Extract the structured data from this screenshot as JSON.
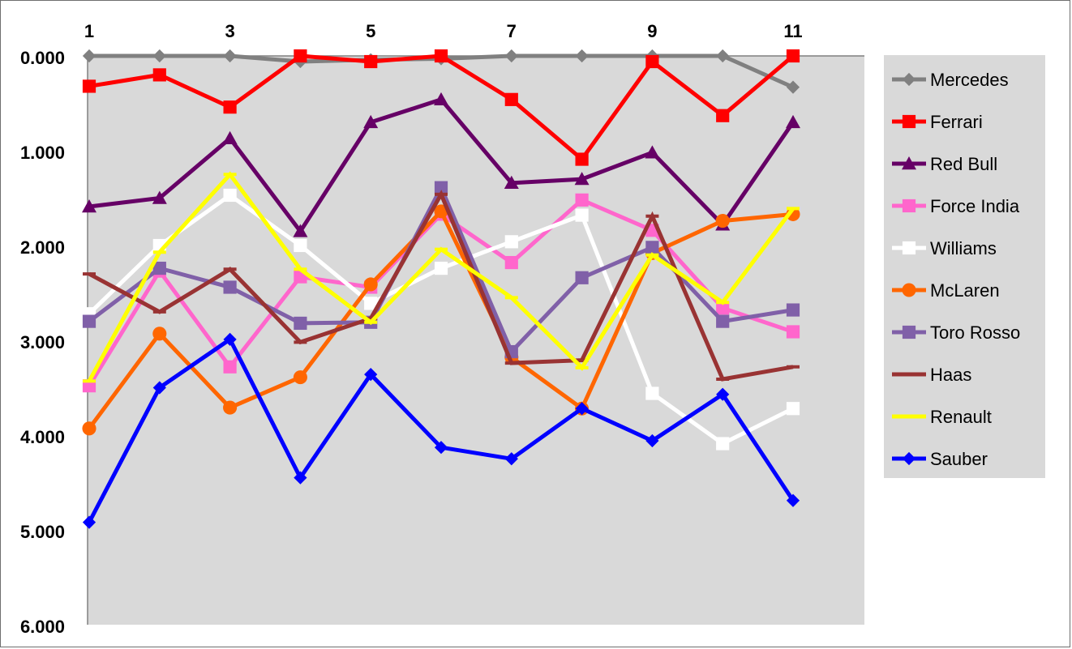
{
  "chart_data": {
    "type": "line",
    "title": "",
    "xlabel": "",
    "ylabel": "",
    "x": [
      1,
      2,
      3,
      4,
      5,
      6,
      7,
      8,
      9,
      10,
      11
    ],
    "x_tick_labels": [
      "1",
      "3",
      "5",
      "7",
      "9",
      "11"
    ],
    "y_tick_labels": [
      "0.000",
      "1.000",
      "2.000",
      "3.000",
      "4.000",
      "5.000",
      "6.000"
    ],
    "ylim": [
      0,
      6
    ],
    "y_inverted": true,
    "x_axis_position": "top",
    "plot_background": "#d9d9d9",
    "grid": false,
    "legend_position": "right",
    "series": [
      {
        "name": "Mercedes",
        "color": "#808080",
        "marker": "diamond",
        "values": [
          0.0,
          0.0,
          0.0,
          0.06,
          0.04,
          0.03,
          0.0,
          0.0,
          0.0,
          0.0,
          0.33
        ]
      },
      {
        "name": "Ferrari",
        "color": "#ff0000",
        "marker": "square",
        "values": [
          0.32,
          0.2,
          0.54,
          0.0,
          0.06,
          0.0,
          0.46,
          1.09,
          0.06,
          0.63,
          0.0
        ]
      },
      {
        "name": "Red Bull",
        "color": "#660066",
        "marker": "triangle",
        "values": [
          1.59,
          1.5,
          0.87,
          1.85,
          0.7,
          0.46,
          1.34,
          1.3,
          1.02,
          1.78,
          0.7
        ]
      },
      {
        "name": "Force India",
        "color": "#ff66cc",
        "marker": "square",
        "values": [
          3.48,
          2.27,
          3.28,
          2.33,
          2.44,
          1.67,
          2.18,
          1.52,
          1.84,
          2.66,
          2.91
        ]
      },
      {
        "name": "Williams",
        "color": "#ffffff",
        "marker": "square",
        "values": [
          2.72,
          2.0,
          1.47,
          2.0,
          2.61,
          2.24,
          1.96,
          1.68,
          3.56,
          4.09,
          3.72
        ]
      },
      {
        "name": "McLaren",
        "color": "#ff6600",
        "marker": "circle",
        "values": [
          3.93,
          2.93,
          3.71,
          3.39,
          2.41,
          1.64,
          3.18,
          3.72,
          2.08,
          1.74,
          1.67
        ]
      },
      {
        "name": "Toro Rosso",
        "color": "#8060a8",
        "marker": "square",
        "values": [
          2.8,
          2.24,
          2.44,
          2.82,
          2.81,
          1.39,
          3.12,
          2.34,
          2.02,
          2.8,
          2.68
        ]
      },
      {
        "name": "Haas",
        "color": "#993333",
        "marker": "dash",
        "values": [
          2.3,
          2.7,
          2.25,
          3.02,
          2.77,
          1.46,
          3.24,
          3.21,
          1.69,
          3.41,
          3.28
        ]
      },
      {
        "name": "Renault",
        "color": "#ffff00",
        "marker": "dash",
        "values": [
          3.43,
          2.07,
          1.25,
          2.25,
          2.81,
          2.04,
          2.55,
          3.29,
          2.1,
          2.6,
          1.61
        ]
      },
      {
        "name": "Sauber",
        "color": "#0000ff",
        "marker": "diamond",
        "values": [
          4.92,
          3.5,
          2.99,
          4.45,
          3.36,
          4.13,
          4.25,
          3.72,
          4.06,
          3.57,
          4.69
        ]
      }
    ]
  }
}
